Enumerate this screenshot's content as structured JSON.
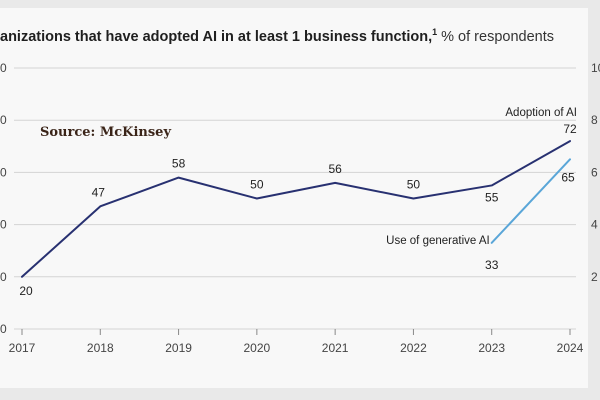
{
  "chart_data": {
    "type": "line",
    "title": "anizations that have adopted AI in at least 1 business function,",
    "title_footnote": "1",
    "subtitle": "% of respondents",
    "annotation": "Source: McKinsey",
    "x": [
      "2017",
      "2018",
      "2019",
      "2020",
      "2021",
      "2022",
      "2023",
      "2024"
    ],
    "left_ticks": [
      "0",
      "0",
      "0",
      "0",
      "0",
      "0"
    ],
    "right_ticks": [
      "10",
      "8",
      "6",
      "4",
      "2"
    ],
    "ylim": [
      0,
      100
    ],
    "grid": true,
    "series": [
      {
        "name": "Adoption of AI",
        "x": [
          "2017",
          "2018",
          "2019",
          "2020",
          "2021",
          "2022",
          "2023",
          "2024"
        ],
        "values": [
          20,
          47,
          58,
          50,
          56,
          50,
          55,
          72
        ],
        "labels": [
          "20",
          "47",
          "58",
          "50",
          "56",
          "50",
          "55",
          "72"
        ],
        "color": "#283171"
      },
      {
        "name": "Use of generative AI",
        "x": [
          "2023",
          "2024"
        ],
        "values": [
          33,
          65
        ],
        "labels": [
          "33",
          "65"
        ],
        "color": "#5aa6d8"
      }
    ]
  }
}
